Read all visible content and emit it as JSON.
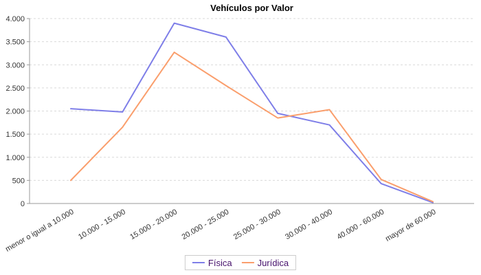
{
  "chart_data": {
    "type": "line",
    "title": "Vehículos por Valor",
    "categories": [
      "menor o igual a 10.000",
      "10.000 - 15.000",
      "15.000 - 20.000",
      "20.000 - 25.000",
      "25.000 - 30.000",
      "30.000 - 40.000",
      "40.000 - 60.000",
      "mayor de 60.000"
    ],
    "series": [
      {
        "name": "Física",
        "color": "#7e7ee8",
        "values": [
          2050,
          1980,
          3900,
          3600,
          1950,
          1700,
          430,
          20
        ]
      },
      {
        "name": "Jurídica",
        "color": "#fa9e6c",
        "values": [
          500,
          1650,
          3270,
          2550,
          1850,
          2030,
          520,
          40
        ]
      }
    ],
    "xlabel": "",
    "ylabel": "",
    "ylim": [
      0,
      4000
    ],
    "ytick_step": 500,
    "ytick_labels": [
      "0",
      "500",
      "1.000",
      "1.500",
      "2.000",
      "2.500",
      "3.000",
      "3.500",
      "4.000"
    ],
    "grid": "horizontal-dashed",
    "x_label_rotation_deg": -30,
    "legend_position": "bottom",
    "colors": {
      "background": "#ffffff",
      "grid_line": "#d9d9d9",
      "axis_line": "#999999",
      "tick_label": "#333333",
      "title_text": "#000000",
      "legend_text": "#45106b",
      "legend_border": "#cccccc"
    }
  }
}
